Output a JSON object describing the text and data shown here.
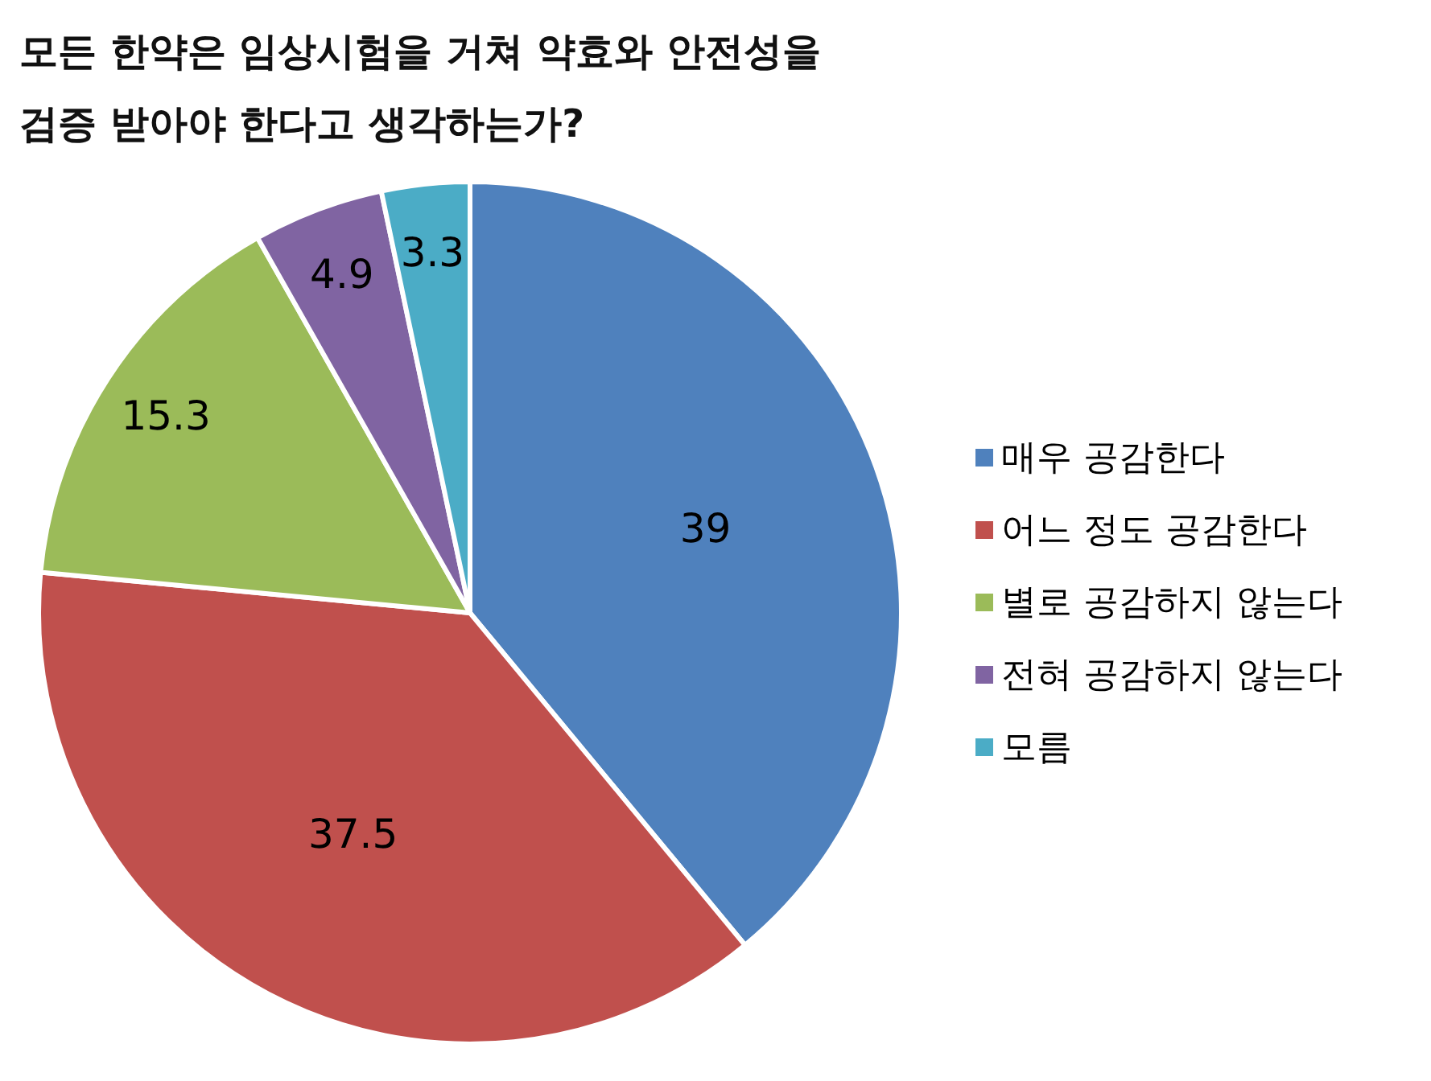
{
  "chart_data": {
    "type": "pie",
    "title": "모든 한약은 임상시험을 거쳐 약효와 안전성을 검증 받아야 한다고 생각하는가?",
    "categories": [
      "매우 공감한다",
      "어느 정도 공감한다",
      "별로 공감하지 않는다",
      "전혀 공감하지 않는다",
      "모름"
    ],
    "values": [
      39,
      37.5,
      15.3,
      4.9,
      3.3
    ],
    "colors": [
      "#4f81bd",
      "#c0504d",
      "#9bbb59",
      "#8064a2",
      "#4bacc6"
    ],
    "data_labels": true,
    "legend": "right"
  }
}
